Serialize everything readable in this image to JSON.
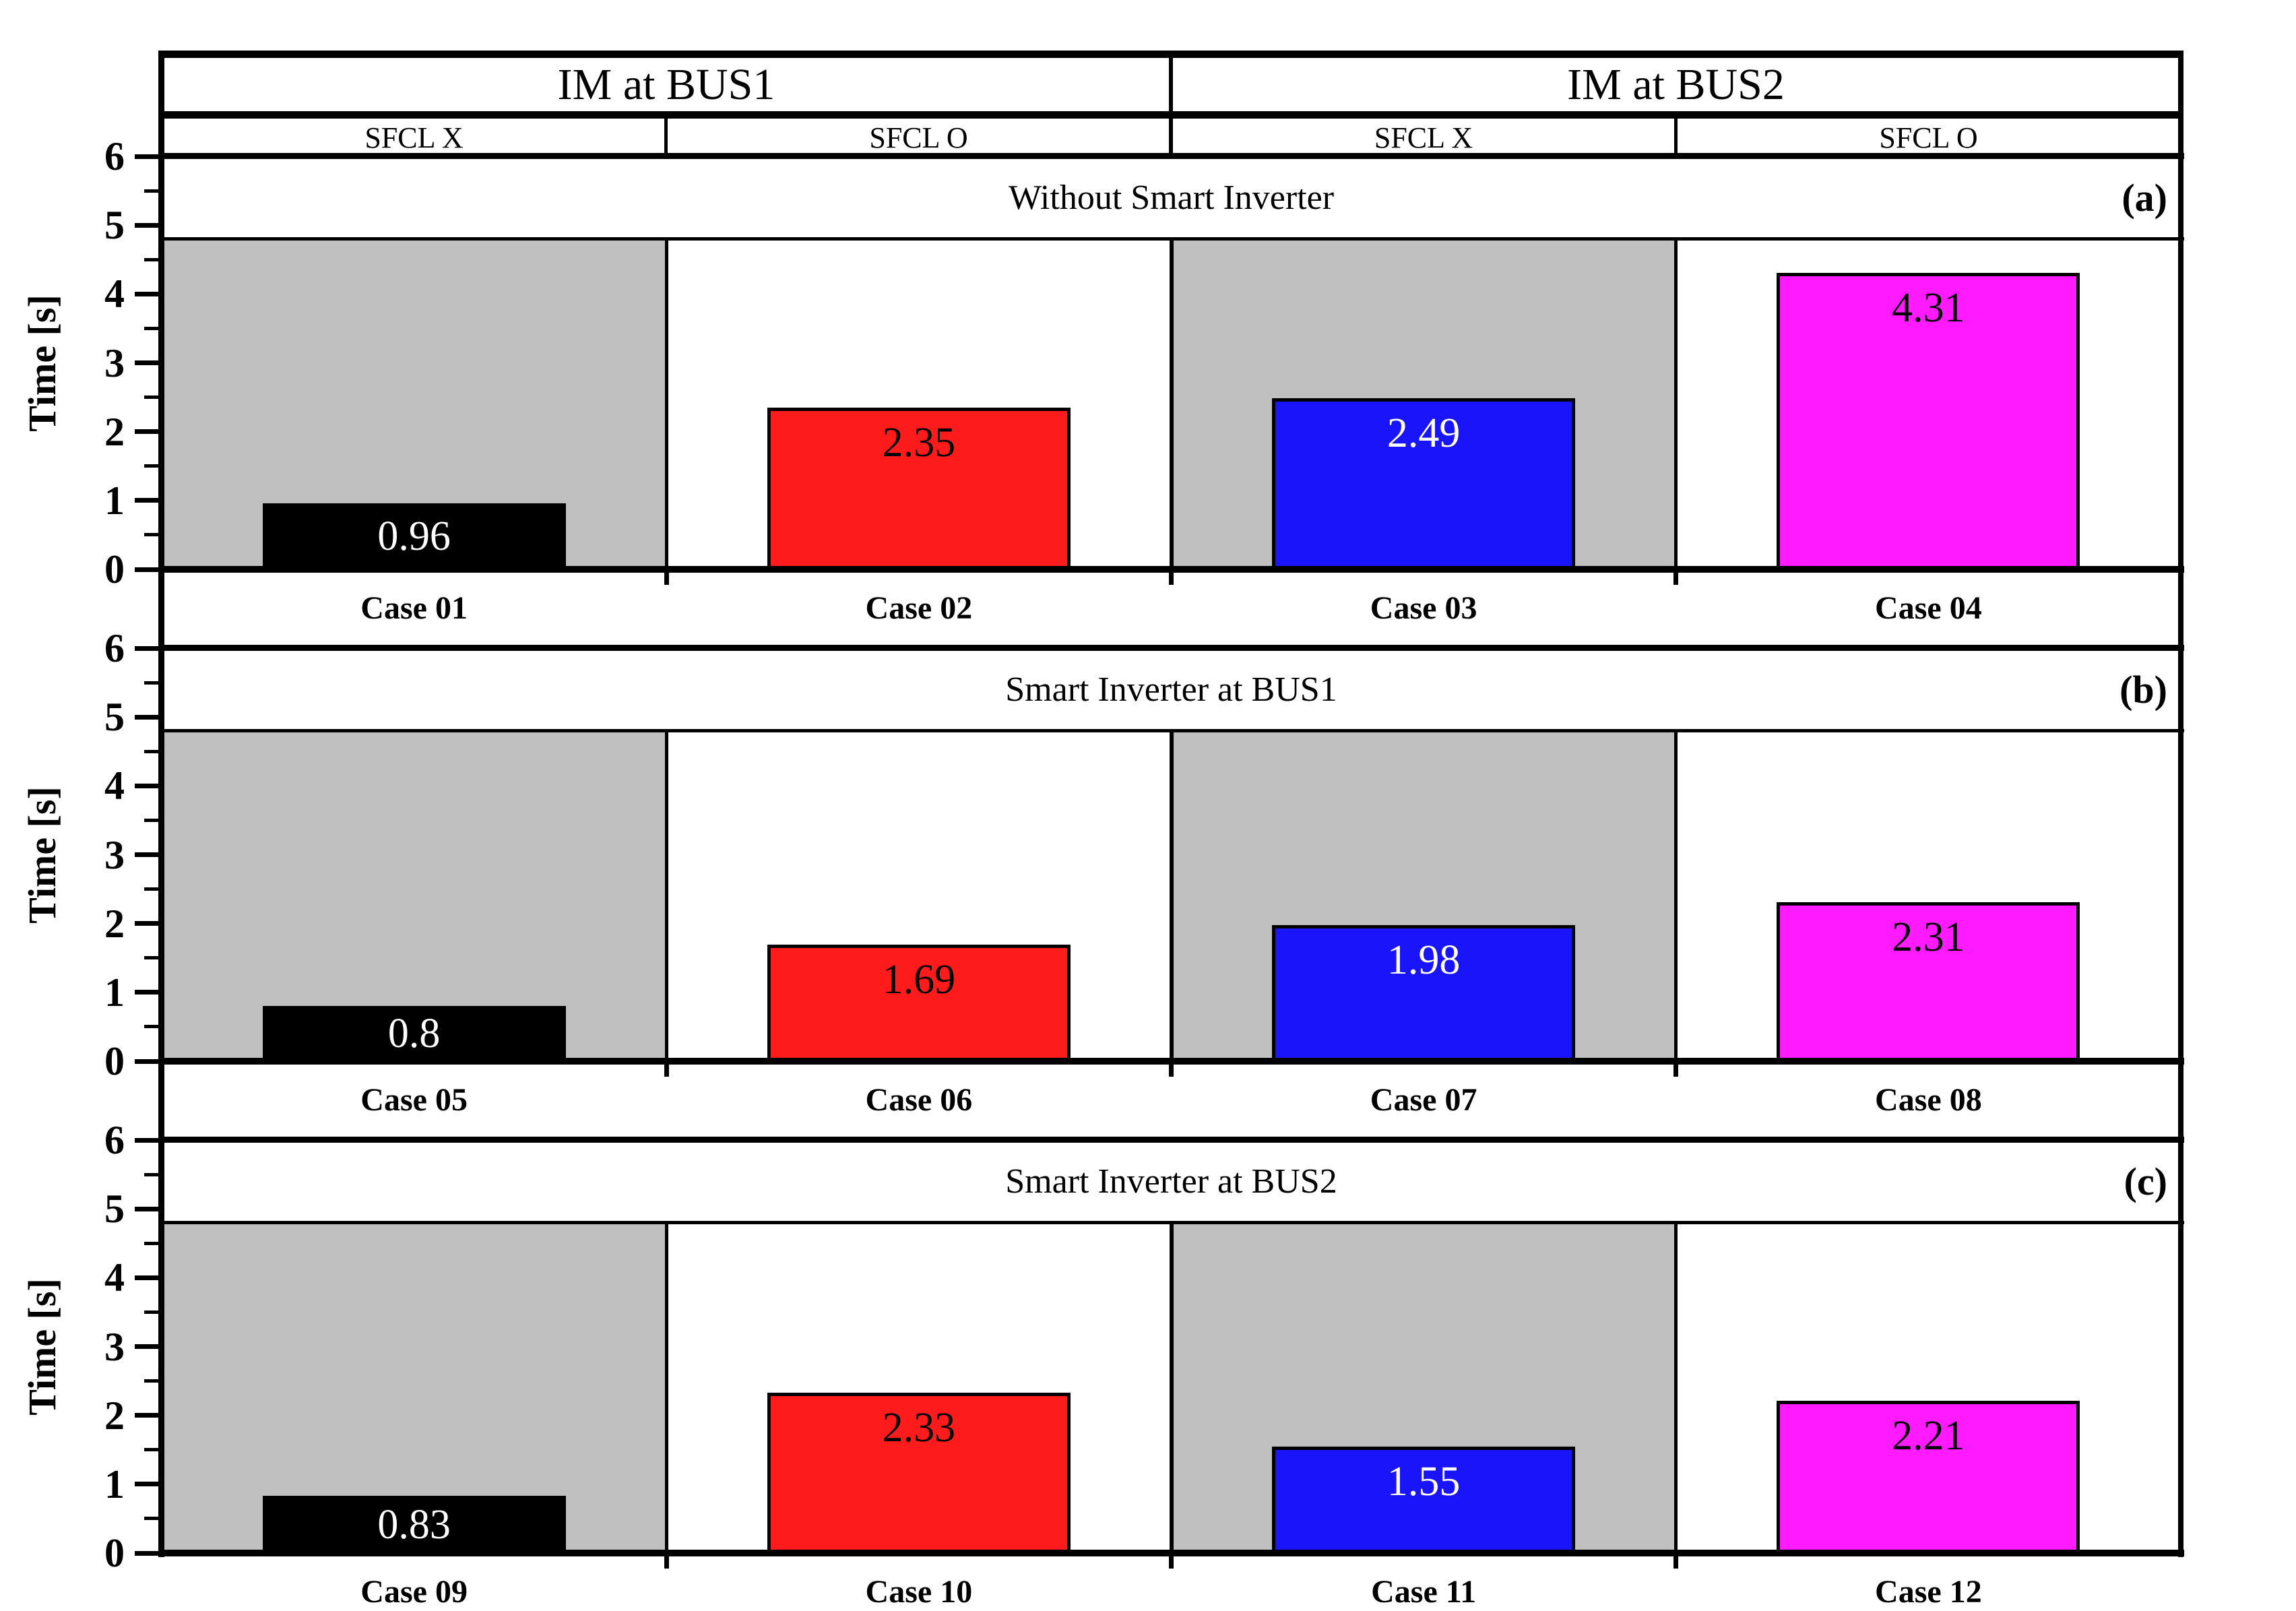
{
  "header": {
    "groups": [
      {
        "label": "IM at BUS1"
      },
      {
        "label": "IM at BUS2"
      }
    ],
    "subcolumns": [
      {
        "label": "SFCL X"
      },
      {
        "label": "SFCL O"
      },
      {
        "label": "SFCL X"
      },
      {
        "label": "SFCL O"
      }
    ]
  },
  "y_axis": {
    "label": "Time [s]"
  },
  "colors": {
    "background": "#FFFFFF",
    "line": "#000000",
    "shade": "#C0C0C0",
    "black_bar": "#000000",
    "red_bar": "#FD1B1B",
    "blue_bar": "#1A14FA",
    "magenta_bar": "#FF1AFF"
  },
  "chart_data": {
    "type": "bar",
    "ylabel": "Time [s]",
    "ylim": [
      0,
      6
    ],
    "yticks": [
      0,
      1,
      2,
      3,
      4,
      5,
      6
    ],
    "ytick_labels": [
      "0",
      "1",
      "2",
      "3",
      "4",
      "5",
      "6"
    ],
    "minor_tick_step": 0.5,
    "grid": false,
    "legend": false,
    "panels": [
      {
        "letter": "(a)",
        "title": "Without Smart Inverter",
        "categories": [
          "Case 01",
          "Case 02",
          "Case 03",
          "Case 04"
        ],
        "values": [
          0.96,
          2.35,
          2.49,
          4.31
        ],
        "value_labels": [
          "0.96",
          "2.35",
          "2.49",
          "4.31"
        ]
      },
      {
        "letter": "(b)",
        "title": "Smart Inverter at BUS1",
        "categories": [
          "Case 05",
          "Case 06",
          "Case 07",
          "Case 08"
        ],
        "values": [
          0.8,
          1.69,
          1.98,
          2.31
        ],
        "value_labels": [
          "0.8",
          "1.69",
          "1.98",
          "2.31"
        ]
      },
      {
        "letter": "(c)",
        "title": "Smart Inverter at BUS2",
        "categories": [
          "Case 09",
          "Case 10",
          "Case 11",
          "Case 12"
        ],
        "values": [
          0.83,
          2.33,
          1.55,
          2.21
        ],
        "value_labels": [
          "0.83",
          "2.33",
          "1.55",
          "2.21"
        ]
      }
    ],
    "bar_colors": [
      "#000000",
      "#FD1B1B",
      "#1A14FA",
      "#FF1AFF"
    ],
    "value_label_colors": [
      "#FFFFFF",
      "#000000",
      "#FFFFFF",
      "#000000"
    ],
    "shaded_column_indices": [
      0,
      2
    ],
    "shade_color": "#C0C0C0",
    "shade_top": 4.8
  }
}
